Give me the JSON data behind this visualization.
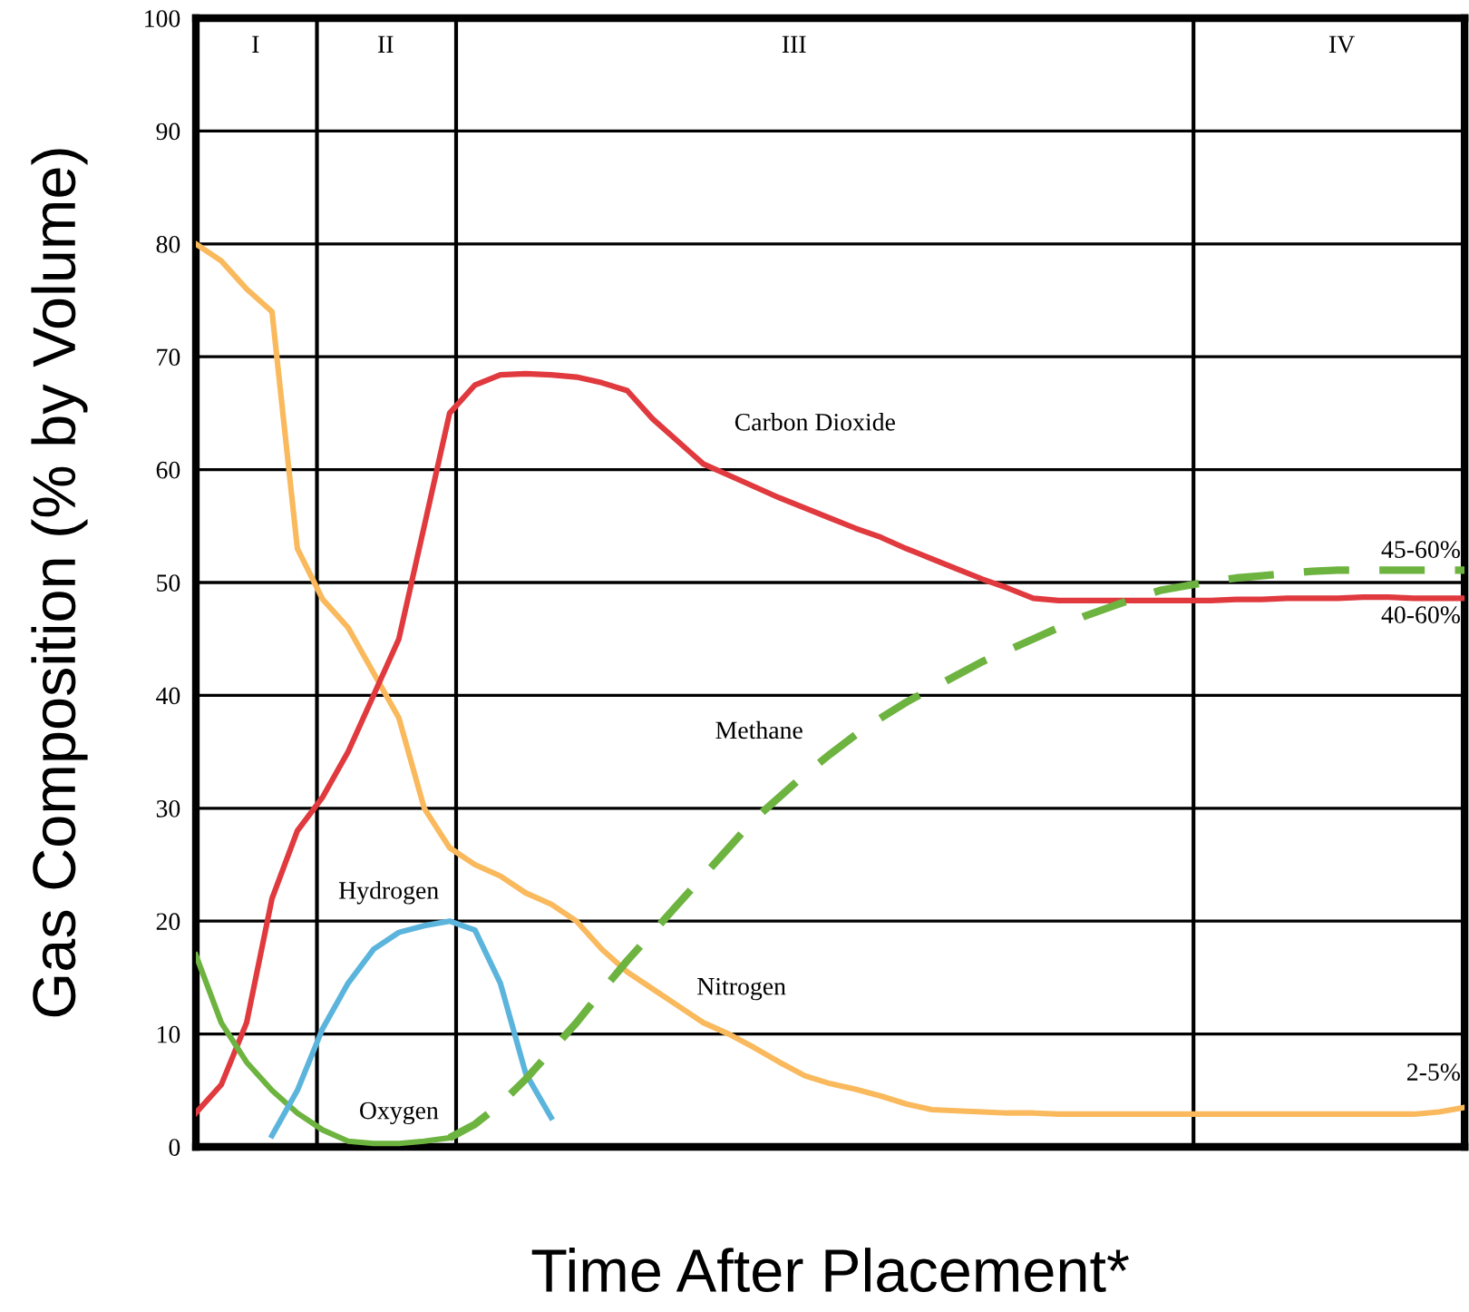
{
  "chart_data": {
    "type": "line",
    "xlabel": "Time After Placement*",
    "ylabel": "Gas Composition (% by Volume)",
    "categories": [
      null,
      null,
      null,
      null,
      null,
      null,
      null,
      null,
      null,
      null,
      null,
      null,
      null,
      null,
      null,
      null,
      null,
      null,
      null,
      null,
      null,
      null,
      null,
      null,
      null,
      null,
      null,
      null,
      null,
      null,
      null,
      null,
      null,
      null,
      null,
      null,
      null,
      null,
      null,
      null,
      null,
      null,
      null,
      null,
      null,
      null,
      null,
      null,
      null,
      null,
      null
    ],
    "ylim": [
      0,
      100
    ],
    "yticks": [
      0,
      10,
      20,
      30,
      40,
      50,
      60,
      70,
      80,
      90,
      100
    ],
    "grid": "y",
    "legend": false,
    "marker": "none",
    "series": [
      {
        "name": "Nitrogen",
        "color": "#f9b95c",
        "line_style": "solid",
        "values": [
          80,
          78.5,
          76,
          74,
          53,
          48.5,
          46,
          42,
          38,
          30,
          26.5,
          25,
          24,
          22.5,
          21.5,
          20,
          17.5,
          15.5,
          14,
          12.5,
          11,
          10,
          8.8,
          7.5,
          6.3,
          5.6,
          5.1,
          4.5,
          3.8,
          3.3,
          3.2,
          3.1,
          3.0,
          3.0,
          2.9,
          2.9,
          2.9,
          2.9,
          2.9,
          2.9,
          2.9,
          2.9,
          2.9,
          2.9,
          2.9,
          2.9,
          2.9,
          2.9,
          2.9,
          3.1,
          3.5
        ]
      },
      {
        "name": "Carbon Dioxide",
        "color": "#e0393e",
        "line_style": "solid",
        "values": [
          3,
          5.5,
          11,
          22,
          28,
          31,
          35,
          40,
          45,
          55,
          65,
          67.5,
          68.4,
          68.5,
          68.4,
          68.2,
          67.7,
          67,
          64.5,
          62.5,
          60.5,
          59.5,
          58.5,
          57.5,
          56.6,
          55.7,
          54.8,
          54,
          53,
          52.1,
          51.2,
          50.3,
          49.5,
          48.6,
          48.4,
          48.4,
          48.4,
          48.4,
          48.4,
          48.4,
          48.4,
          48.5,
          48.5,
          48.6,
          48.6,
          48.6,
          48.7,
          48.7,
          48.6,
          48.6,
          48.6
        ]
      },
      {
        "name": "Oxygen",
        "color": "#6db33f",
        "line_style": "solid",
        "values": [
          17,
          11,
          7.5,
          5,
          3,
          1.5,
          0.5,
          0.3,
          0.3,
          0.5,
          0.8,
          null,
          null,
          null,
          null,
          null,
          null,
          null,
          null,
          null,
          null,
          null,
          null,
          null,
          null,
          null,
          null,
          null,
          null,
          null,
          null,
          null,
          null,
          null,
          null,
          null,
          null,
          null,
          null,
          null,
          null,
          null,
          null,
          null,
          null,
          null,
          null,
          null,
          null,
          null,
          null
        ]
      },
      {
        "name": "Hydrogen",
        "color": "#5bb4dc",
        "line_style": "solid",
        "values": [
          null,
          null,
          null,
          1,
          5,
          10.5,
          14.5,
          17.5,
          19,
          19.6,
          20,
          19.2,
          14.5,
          6.5,
          2.6,
          null,
          null,
          null,
          null,
          null,
          null,
          null,
          null,
          null,
          null,
          null,
          null,
          null,
          null,
          null,
          null,
          null,
          null,
          null,
          null,
          null,
          null,
          null,
          null,
          null,
          null,
          null,
          null,
          null,
          null,
          null,
          null,
          null,
          null,
          null,
          null
        ]
      },
      {
        "name": "Methane",
        "color": "#6db33f",
        "line_style": "dashed",
        "values": [
          null,
          null,
          null,
          null,
          null,
          null,
          null,
          null,
          null,
          null,
          0.8,
          2,
          3.8,
          6,
          8.5,
          11,
          13.8,
          16.5,
          19,
          21.5,
          24,
          26.5,
          29,
          31,
          33,
          34.8,
          36.5,
          38,
          39.4,
          40.6,
          41.8,
          43,
          44,
          45,
          46,
          47,
          47.8,
          48.6,
          49.3,
          49.7,
          50.1,
          50.4,
          50.6,
          50.8,
          51,
          51.1,
          51.1,
          51.1,
          51.1,
          51.1,
          51.1
        ]
      }
    ],
    "annotations": [
      "I",
      "II",
      "III",
      "IV",
      "45-60%",
      "40-60%",
      "2-5%"
    ]
  }
}
